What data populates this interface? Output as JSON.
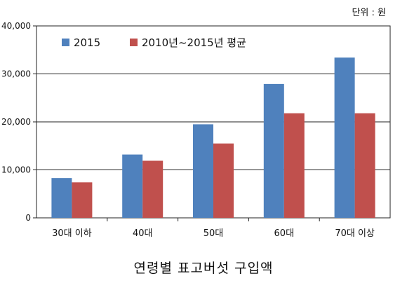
{
  "unit_label": "단위 : 원",
  "caption": "연령별 표고버섯 구입액",
  "chart_data": {
    "type": "bar",
    "categories": [
      "30대 이하",
      "40대",
      "50대",
      "60대",
      "70대 이상"
    ],
    "series": [
      {
        "name": "2015",
        "color": "#4f81bd",
        "values": [
          8300,
          13200,
          19500,
          27900,
          33400
        ]
      },
      {
        "name": "2010년~2015년 평균",
        "color": "#c0504d",
        "values": [
          7400,
          11900,
          15500,
          21800,
          21800
        ]
      }
    ],
    "ylim": [
      0,
      40000
    ],
    "yticks": [
      0,
      10000,
      20000,
      30000,
      40000
    ],
    "ytick_labels": [
      "0",
      "10,000",
      "20,000",
      "30,000",
      "40,000"
    ],
    "grid": true,
    "legend": "top-left"
  }
}
